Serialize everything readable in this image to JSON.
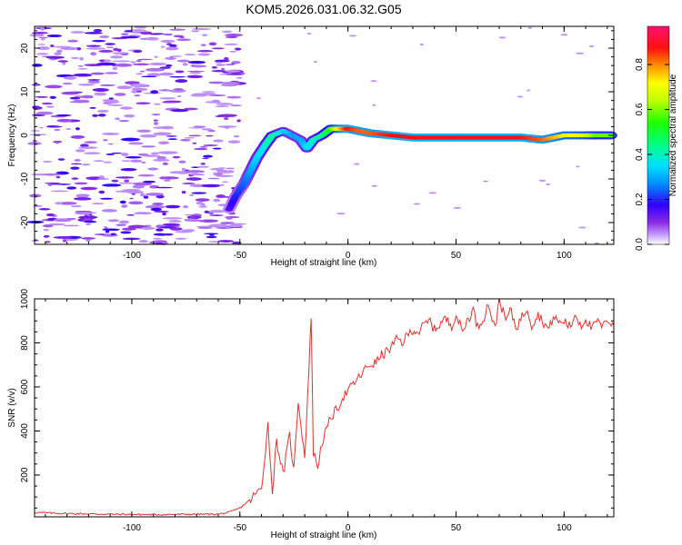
{
  "colors": {
    "snr_line": "#e8302a",
    "frame": "#000000",
    "background": "#ffffff"
  },
  "chart_data": [
    {
      "type": "heatmap",
      "title": "KOM5.2026.031.06.32.G05",
      "xlabel": "Height of straight line (km)",
      "ylabel": "Frequency (Hz)",
      "xlim": [
        -145,
        123
      ],
      "ylim": [
        -25,
        25
      ],
      "x_ticks": [
        -100,
        -50,
        0,
        50,
        100
      ],
      "y_ticks": [
        -20,
        -10,
        0,
        10,
        20
      ],
      "colorbar": {
        "label": "Normalized spectral amplitude",
        "range": [
          0,
          0.97
        ],
        "ticks": [
          0.0,
          0.2,
          0.4,
          0.6,
          0.8
        ],
        "tick_labels": [
          "0.0",
          "0.2",
          "0.4",
          "0.6",
          "0.8"
        ],
        "colormap": "rainbow (white-violet-blue-cyan-green-yellow-orange-red-magenta)"
      },
      "ridge": {
        "description": "main signal track (frequency vs height)",
        "height_km": [
          -55,
          -52,
          -48,
          -45,
          -42,
          -38,
          -35,
          -30,
          -26,
          -22,
          -19,
          -16,
          -12,
          -8,
          -4,
          0,
          5,
          10,
          20,
          30,
          40,
          50,
          60,
          70,
          80,
          90,
          100,
          110,
          115,
          123
        ],
        "frequency_hz": [
          -17,
          -14,
          -11,
          -8,
          -5,
          -2,
          0,
          1,
          0,
          -1,
          -3,
          -1,
          0,
          1.5,
          1.5,
          1.5,
          1,
          0.5,
          0,
          -0.5,
          -0.5,
          -0.5,
          -0.5,
          -0.5,
          -0.5,
          -1,
          0,
          0,
          0,
          0
        ],
        "amplitude": [
          0.15,
          0.2,
          0.25,
          0.3,
          0.35,
          0.4,
          0.45,
          0.35,
          0.3,
          0.3,
          0.35,
          0.4,
          0.45,
          0.55,
          0.75,
          0.9,
          0.85,
          0.85,
          0.9,
          0.9,
          0.9,
          0.9,
          0.9,
          0.9,
          0.9,
          0.85,
          0.75,
          0.7,
          0.6,
          0.6
        ]
      }
    },
    {
      "type": "line",
      "title": "",
      "xlabel": "Height of straight line (km)",
      "ylabel": "SNR (v/v)",
      "xlim": [
        -145,
        123
      ],
      "ylim": [
        10,
        1000
      ],
      "x_ticks": [
        -100,
        -50,
        0,
        50,
        100
      ],
      "y_ticks": [
        200,
        400,
        600,
        800,
        1000
      ],
      "series": [
        {
          "name": "SNR",
          "x": [
            -145,
            -130,
            -110,
            -90,
            -70,
            -60,
            -55,
            -50,
            -45,
            -40,
            -37,
            -35,
            -33,
            -30,
            -27,
            -25,
            -23,
            -20,
            -18,
            -17,
            -16,
            -14,
            -12,
            -10,
            -8,
            -5,
            -2,
            0,
            3,
            5,
            8,
            10,
            13,
            15,
            18,
            20,
            23,
            25,
            28,
            30,
            33,
            35,
            38,
            40,
            43,
            45,
            48,
            50,
            53,
            55,
            58,
            60,
            63,
            65,
            68,
            70,
            73,
            75,
            78,
            80,
            83,
            85,
            88,
            90,
            93,
            95,
            98,
            100,
            103,
            105,
            108,
            110,
            113,
            115,
            118,
            120,
            123
          ],
          "values": [
            30,
            25,
            22,
            20,
            22,
            22,
            30,
            50,
            90,
            140,
            430,
            120,
            360,
            200,
            380,
            220,
            540,
            280,
            700,
            930,
            300,
            240,
            350,
            400,
            460,
            500,
            560,
            580,
            620,
            640,
            680,
            700,
            710,
            740,
            760,
            780,
            820,
            800,
            840,
            860,
            850,
            880,
            900,
            860,
            890,
            910,
            880,
            930,
            850,
            900,
            950,
            870,
            920,
            980,
            860,
            1000,
            900,
            950,
            870,
            910,
            960,
            880,
            930,
            900,
            860,
            920,
            890,
            900,
            870,
            930,
            880,
            910,
            860,
            900,
            870,
            910,
            880
          ]
        }
      ]
    }
  ]
}
